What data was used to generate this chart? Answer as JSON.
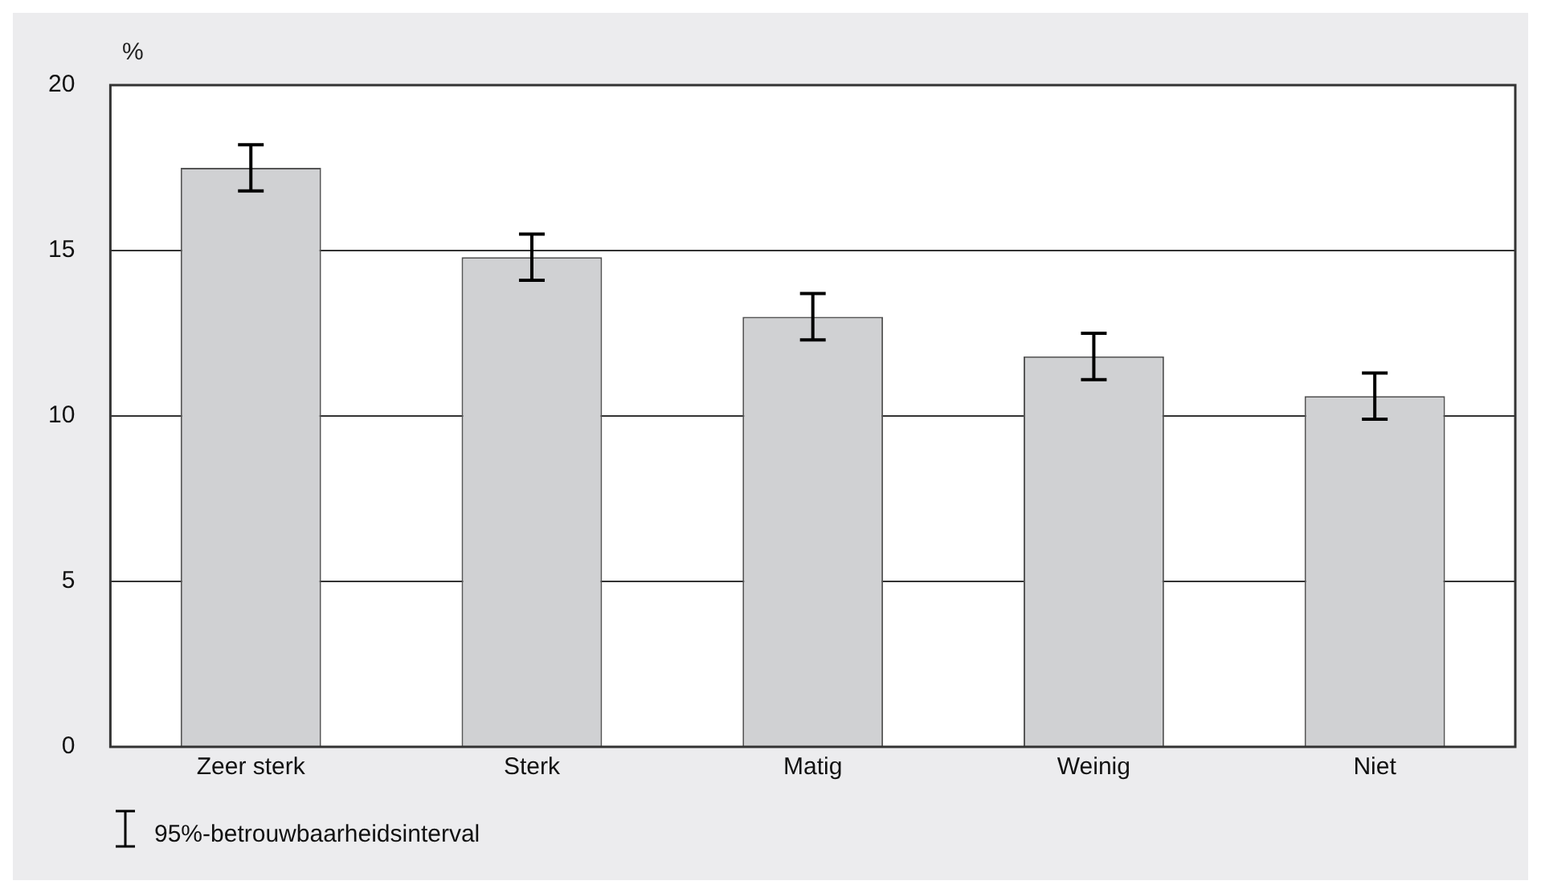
{
  "chart_data": {
    "type": "bar",
    "ylabel": "%",
    "categories": [
      "Zeer sterk",
      "Sterk",
      "Matig",
      "Weinig",
      "Niet"
    ],
    "values": [
      17.5,
      14.8,
      13.0,
      11.8,
      10.6
    ],
    "errors": [
      [
        16.8,
        18.2
      ],
      [
        14.1,
        15.5
      ],
      [
        12.3,
        13.7
      ],
      [
        11.1,
        12.5
      ],
      [
        9.9,
        11.3
      ]
    ],
    "color": "#d0d1d3",
    "ylim": [
      0,
      20
    ],
    "yticks": [
      0,
      5,
      10,
      15,
      20
    ],
    "grid": "y",
    "legend": false,
    "annotations": [
      "95%-betrouwbaarheidsinterval"
    ]
  }
}
